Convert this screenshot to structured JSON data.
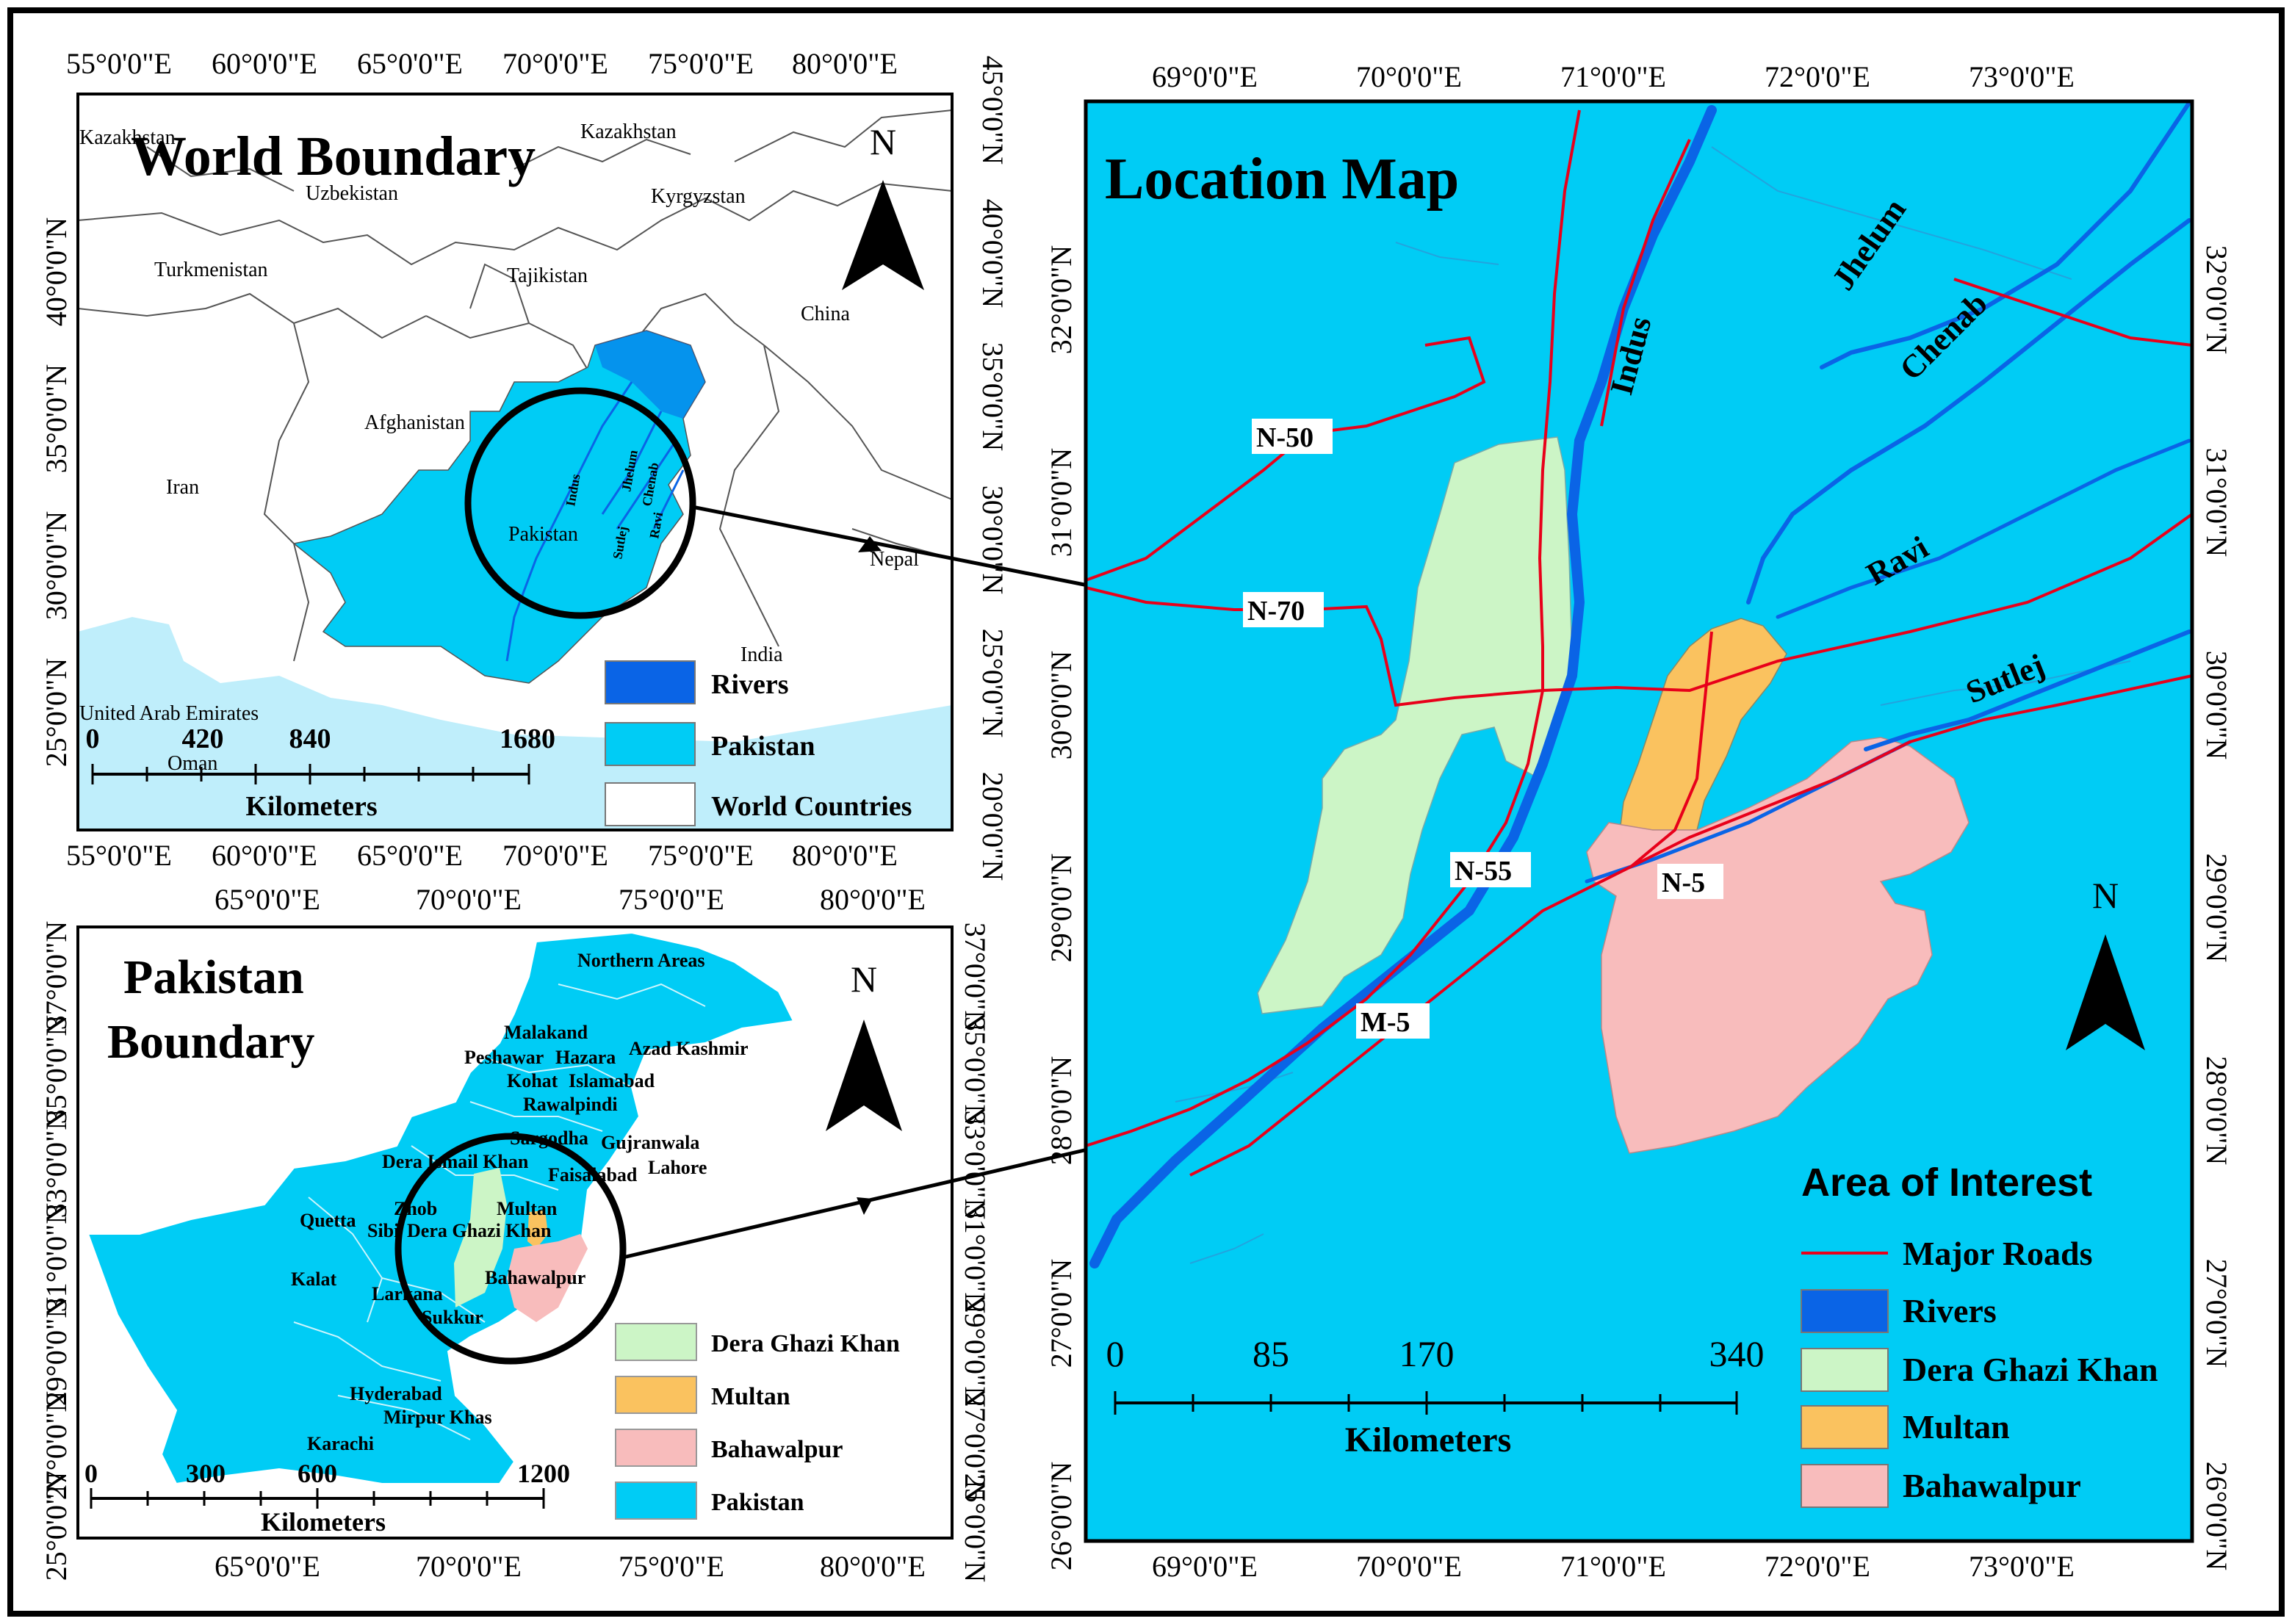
{
  "colors": {
    "pakistan": "#00ccf5",
    "rivers": "#0a64e6",
    "dera_ghazi_khan": "#ccf5c6",
    "multan": "#fac25f",
    "bahawalpur": "#f8bcbc",
    "roads": "#e8001a",
    "sea": "#bfeefb",
    "world_countries": "#ffffff"
  },
  "world": {
    "title": "World Boundary",
    "north": "N",
    "top_ticks": [
      "55°0'0\"E",
      "60°0'0\"E",
      "65°0'0\"E",
      "70°0'0\"E",
      "75°0'0\"E",
      "80°0'0\"E"
    ],
    "bottom_ticks": [
      "55°0'0\"E",
      "60°0'0\"E",
      "65°0'0\"E",
      "70°0'0\"E",
      "75°0'0\"E",
      "80°0'0\"E"
    ],
    "right_ticks": [
      "45°0'0\"N",
      "40°0'0\"N",
      "35°0'0\"N",
      "30°0'0\"N",
      "25°0'0\"N",
      "20°0'0\"N"
    ],
    "left_ticks": [
      "40°0'0\"N",
      "35°0'0\"N",
      "30°0'0\"N",
      "25°0'0\"N"
    ],
    "countries": [
      "Kazakhstan",
      "Kazakhstan",
      "Uzbekistan",
      "Kyrgyzstan",
      "Turkmenistan",
      "Tajikistan",
      "China",
      "Afghanistan",
      "Iran",
      "Pakistan",
      "Nepal",
      "India",
      "United Arab Emirates",
      "Oman"
    ],
    "rivers": [
      "Indus",
      "Jhelum",
      "Chenab",
      "Ravi",
      "Sutlej"
    ],
    "scale": {
      "ticks": [
        "0",
        "420",
        "840",
        "1680"
      ],
      "unit": "Kilometers"
    },
    "legend": [
      "Rivers",
      "Pakistan",
      "World Countries"
    ]
  },
  "pakistan": {
    "title_line1": "Pakistan",
    "title_line2": "Boundary",
    "north": "N",
    "top_ticks": [
      "65°0'0\"E",
      "70°0'0\"E",
      "75°0'0\"E",
      "80°0'0\"E"
    ],
    "bottom_ticks": [
      "65°0'0\"E",
      "70°0'0\"E",
      "75°0'0\"E",
      "80°0'0\"E"
    ],
    "left_ticks": [
      "37°0'0\"N",
      "35°0'0\"N",
      "33°0'0\"N",
      "31°0'0\"N",
      "29°0'0\"N",
      "27°0'0\"N",
      "25°0'0\"N"
    ],
    "right_ticks": [
      "37°0'0\"N",
      "35°0'0\"N",
      "33°0'0\"N",
      "31°0'0\"N",
      "29°0'0\"N",
      "27°0'0\"N",
      "25°0'0\"N"
    ],
    "divisions": [
      "Northern Areas",
      "Malakand",
      "Peshawar",
      "Hazara",
      "Azad Kashmir",
      "Kohat",
      "Islamabad",
      "Rawalpindi",
      "Sargodha",
      "Gujranwala",
      "Dera Ismail Khan",
      "Faisalabad",
      "Lahore",
      "Quetta",
      "Zhob",
      "Sibi",
      "Dera Ghazi Khan",
      "Multan",
      "Kalat",
      "Larkana",
      "Bahawalpur",
      "Sukkur",
      "Hyderabad",
      "Mirpur Khas",
      "Karachi"
    ],
    "scale": {
      "ticks": [
        "0",
        "300",
        "600",
        "1200"
      ],
      "unit": "Kilometers"
    },
    "legend": [
      "Dera Ghazi Khan",
      "Multan",
      "Bahawalpur",
      "Pakistan"
    ]
  },
  "location": {
    "title": "Location Map",
    "north": "N",
    "top_ticks": [
      "69°0'0\"E",
      "70°0'0\"E",
      "71°0'0\"E",
      "72°0'0\"E",
      "73°0'0\"E"
    ],
    "bottom_ticks": [
      "69°0'0\"E",
      "70°0'0\"E",
      "71°0'0\"E",
      "72°0'0\"E",
      "73°0'0\"E"
    ],
    "left_ticks": [
      "32°0'0\"N",
      "31°0'0\"N",
      "30°0'0\"N",
      "29°0'0\"N",
      "28°0'0\"N",
      "27°0'0\"N",
      "26°0'0\"N"
    ],
    "right_ticks": [
      "32°0'0\"N",
      "31°0'0\"N",
      "30°0'0\"N",
      "29°0'0\"N",
      "28°0'0\"N",
      "27°0'0\"N",
      "26°0'0\"N"
    ],
    "rivers": [
      "Indus",
      "Jhelum",
      "Chenab",
      "Ravi",
      "Sutlej"
    ],
    "roads": [
      "N-50",
      "N-70",
      "N-55",
      "N-5",
      "M-5"
    ],
    "scale": {
      "ticks": [
        "0",
        "85",
        "170",
        "340"
      ],
      "unit": "Kilometers"
    },
    "legend_title": "Area of Interest",
    "legend": [
      "Major Roads",
      "Rivers",
      "Dera Ghazi Khan",
      "Multan",
      "Bahawalpur"
    ]
  }
}
